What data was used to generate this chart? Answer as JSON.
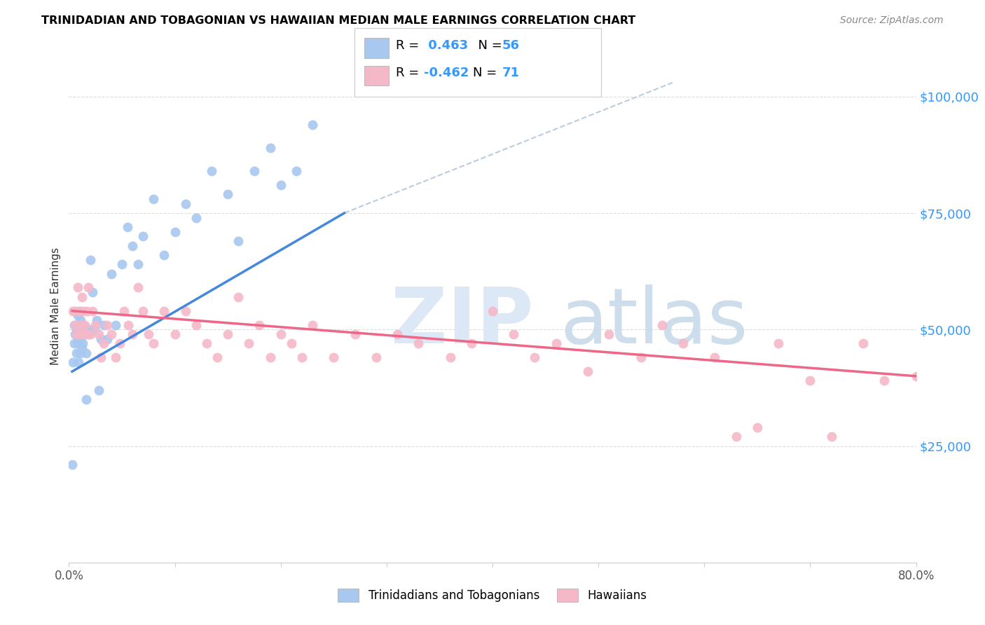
{
  "title": "TRINIDADIAN AND TOBAGONIAN VS HAWAIIAN MEDIAN MALE EARNINGS CORRELATION CHART",
  "source": "Source: ZipAtlas.com",
  "ylabel": "Median Male Earnings",
  "xlim": [
    0.0,
    0.8
  ],
  "ylim": [
    0,
    110000
  ],
  "yticks": [
    0,
    25000,
    50000,
    75000,
    100000
  ],
  "ytick_labels": [
    "",
    "$25,000",
    "$50,000",
    "$75,000",
    "$100,000"
  ],
  "xticks": [
    0.0,
    0.1,
    0.2,
    0.3,
    0.4,
    0.5,
    0.6,
    0.7,
    0.8
  ],
  "xtick_labels": [
    "0.0%",
    "",
    "",
    "",
    "",
    "",
    "",
    "",
    "80.0%"
  ],
  "blue_scatter_color": "#A8C8F0",
  "pink_scatter_color": "#F5B8C8",
  "blue_line_color": "#4488DD",
  "pink_line_color": "#EE6688",
  "dash_color": "#BBCCDD",
  "r_blue": "0.463",
  "n_blue": "56",
  "r_pink": "-0.462",
  "n_pink": "71",
  "legend_text_color": "#000000",
  "legend_value_color": "#3399FF",
  "blue_scatter_x": [
    0.003,
    0.004,
    0.005,
    0.005,
    0.006,
    0.006,
    0.007,
    0.007,
    0.008,
    0.008,
    0.009,
    0.009,
    0.01,
    0.01,
    0.01,
    0.011,
    0.011,
    0.011,
    0.012,
    0.012,
    0.013,
    0.013,
    0.014,
    0.015,
    0.016,
    0.016,
    0.018,
    0.019,
    0.02,
    0.022,
    0.024,
    0.026,
    0.028,
    0.03,
    0.033,
    0.036,
    0.04,
    0.044,
    0.05,
    0.055,
    0.06,
    0.065,
    0.07,
    0.08,
    0.09,
    0.1,
    0.11,
    0.12,
    0.135,
    0.15,
    0.16,
    0.175,
    0.19,
    0.2,
    0.215,
    0.23
  ],
  "blue_scatter_y": [
    21000,
    43000,
    47000,
    51000,
    49000,
    54000,
    45000,
    50000,
    47000,
    53000,
    43000,
    50000,
    48000,
    51000,
    54000,
    45000,
    49000,
    52000,
    46000,
    50000,
    47000,
    51000,
    49000,
    50000,
    35000,
    45000,
    49000,
    50000,
    65000,
    58000,
    50000,
    52000,
    37000,
    48000,
    51000,
    48000,
    62000,
    51000,
    64000,
    72000,
    68000,
    64000,
    70000,
    78000,
    66000,
    71000,
    77000,
    74000,
    84000,
    79000,
    69000,
    84000,
    89000,
    81000,
    84000,
    94000
  ],
  "pink_scatter_x": [
    0.004,
    0.006,
    0.007,
    0.008,
    0.009,
    0.01,
    0.011,
    0.012,
    0.013,
    0.014,
    0.015,
    0.016,
    0.017,
    0.018,
    0.02,
    0.022,
    0.025,
    0.028,
    0.03,
    0.033,
    0.036,
    0.04,
    0.044,
    0.048,
    0.052,
    0.056,
    0.06,
    0.065,
    0.07,
    0.075,
    0.08,
    0.09,
    0.1,
    0.11,
    0.12,
    0.13,
    0.14,
    0.15,
    0.16,
    0.17,
    0.18,
    0.19,
    0.2,
    0.21,
    0.22,
    0.23,
    0.25,
    0.27,
    0.29,
    0.31,
    0.33,
    0.36,
    0.38,
    0.4,
    0.42,
    0.44,
    0.46,
    0.49,
    0.51,
    0.54,
    0.56,
    0.58,
    0.61,
    0.63,
    0.65,
    0.67,
    0.7,
    0.72,
    0.75,
    0.77,
    0.8
  ],
  "pink_scatter_y": [
    54000,
    51000,
    49000,
    59000,
    54000,
    49000,
    51000,
    57000,
    54000,
    49000,
    51000,
    49000,
    54000,
    59000,
    49000,
    54000,
    51000,
    49000,
    44000,
    47000,
    51000,
    49000,
    44000,
    47000,
    54000,
    51000,
    49000,
    59000,
    54000,
    49000,
    47000,
    54000,
    49000,
    54000,
    51000,
    47000,
    44000,
    49000,
    57000,
    47000,
    51000,
    44000,
    49000,
    47000,
    44000,
    51000,
    44000,
    49000,
    44000,
    49000,
    47000,
    44000,
    47000,
    54000,
    49000,
    44000,
    47000,
    41000,
    49000,
    44000,
    51000,
    47000,
    44000,
    27000,
    29000,
    47000,
    39000,
    27000,
    47000,
    39000,
    40000
  ],
  "blue_line_x0": 0.003,
  "blue_line_x1": 0.26,
  "blue_line_y0": 41000,
  "blue_line_y1": 75000,
  "dash_line_x0": 0.26,
  "dash_line_x1": 0.57,
  "dash_line_y0": 75000,
  "dash_line_y1": 103000,
  "pink_line_x0": 0.003,
  "pink_line_x1": 0.8,
  "pink_line_y0": 54000,
  "pink_line_y1": 40000
}
